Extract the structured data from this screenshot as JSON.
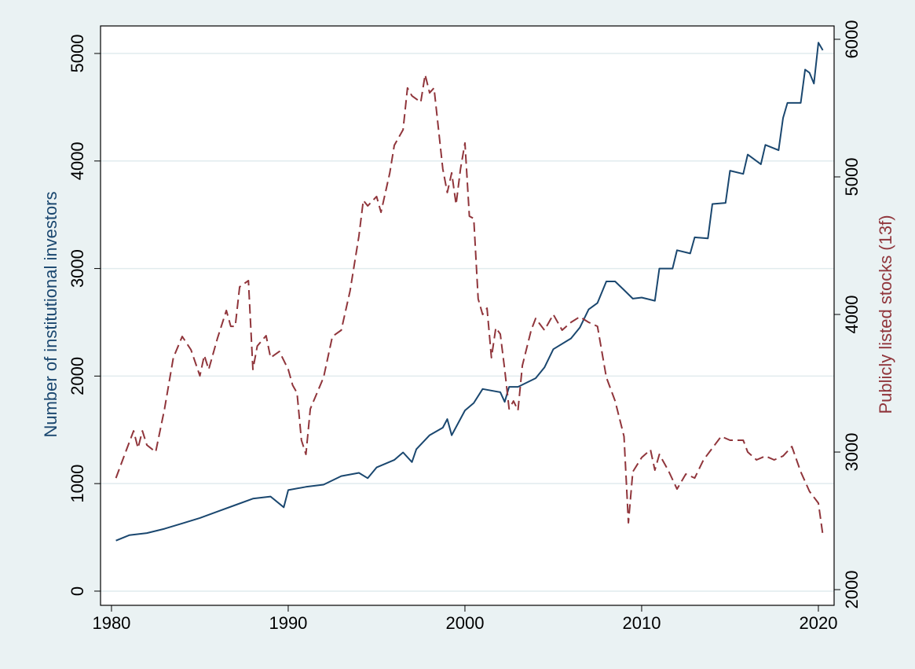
{
  "chart_data": {
    "type": "line",
    "y_label": "Number of institutional investors",
    "y2_label": "Publicly listed stocks (13f)",
    "xlim": [
      1979.38,
      2020.89
    ],
    "xticks": [
      1980,
      1990,
      2000,
      2010,
      2020
    ],
    "ylim": [
      -132,
      5256
    ],
    "yticks": [
      0,
      1000,
      2000,
      3000,
      4000,
      5000
    ],
    "y2lim": [
      1886,
      6097
    ],
    "y2ticks": [
      2000,
      3000,
      4000,
      5000,
      6000
    ],
    "grid": true,
    "series": [
      {
        "name": "Number of institutional investors",
        "color": "#1a476f",
        "dash": false,
        "axis": "y",
        "x": [
          1980.25,
          1981,
          1982,
          1983,
          1984,
          1985,
          1986,
          1987,
          1988,
          1989,
          1989.75,
          1990,
          1991,
          1992,
          1993,
          1994,
          1994.5,
          1995,
          1996,
          1996.5,
          1997,
          1997.25,
          1998,
          1998.75,
          1999,
          1999.25,
          2000,
          2000.5,
          2001,
          2002,
          2002.25,
          2002.5,
          2003,
          2004,
          2004.5,
          2005,
          2006,
          2006.5,
          2007,
          2007.5,
          2008,
          2008.5,
          2009,
          2009.5,
          2010,
          2010.75,
          2011,
          2011.75,
          2012,
          2012.75,
          2013,
          2013.75,
          2014,
          2014.75,
          2015,
          2015.75,
          2016,
          2016.75,
          2017,
          2017.75,
          2018,
          2018.25,
          2019,
          2019.25,
          2019.5,
          2019.75,
          2020,
          2020.25
        ],
        "values": [
          470,
          520,
          540,
          580,
          630,
          680,
          740,
          800,
          860,
          880,
          780,
          940,
          970,
          990,
          1070,
          1100,
          1050,
          1150,
          1220,
          1290,
          1200,
          1320,
          1450,
          1520,
          1600,
          1450,
          1680,
          1750,
          1880,
          1850,
          1760,
          1900,
          1900,
          1980,
          2080,
          2250,
          2350,
          2450,
          2620,
          2680,
          2880,
          2880,
          2800,
          2720,
          2730,
          2700,
          3000,
          3000,
          3170,
          3140,
          3290,
          3280,
          3600,
          3610,
          3910,
          3880,
          4060,
          3970,
          4150,
          4100,
          4400,
          4540,
          4540,
          4850,
          4820,
          4720,
          5100,
          5030
        ]
      },
      {
        "name": "Publicly listed stocks (13f)",
        "color": "#90353b",
        "dash": true,
        "axis": "y2",
        "x": [
          1980.25,
          1980.75,
          1981.25,
          1981.5,
          1981.75,
          1982,
          1982.5,
          1983,
          1983.5,
          1984,
          1984.5,
          1985,
          1985.25,
          1985.5,
          1986,
          1986.5,
          1986.75,
          1987,
          1987.25,
          1987.75,
          1988,
          1988.25,
          1988.75,
          1989,
          1989.5,
          1990,
          1990.25,
          1990.5,
          1990.75,
          1991,
          1991.25,
          1992,
          1992.5,
          1993,
          1993.5,
          1994,
          1994.25,
          1994.5,
          1995,
          1995.25,
          1995.75,
          1996,
          1996.5,
          1996.75,
          1997,
          1997.5,
          1997.75,
          1998,
          1998.25,
          1998.75,
          1999,
          1999.25,
          1999.5,
          1999.75,
          2000,
          2000.25,
          2000.5,
          2000.75,
          2001,
          2001.25,
          2001.5,
          2001.75,
          2002,
          2002.25,
          2002.5,
          2002.75,
          2003,
          2003.25,
          2003.75,
          2004,
          2004.5,
          2005,
          2005.5,
          2006,
          2006.5,
          2007,
          2007.5,
          2008,
          2008.5,
          2009,
          2009.25,
          2009.5,
          2010,
          2010.5,
          2010.75,
          2011,
          2011.5,
          2012,
          2012.5,
          2013,
          2013.5,
          2014,
          2014.5,
          2015,
          2015.75,
          2016,
          2016.5,
          2017,
          2017.5,
          2018,
          2018.5,
          2019,
          2019.5,
          2020,
          2020.25
        ],
        "values": [
          2811,
          2983,
          3154,
          3029,
          3154,
          3051,
          3000,
          3314,
          3686,
          3840,
          3743,
          3554,
          3703,
          3600,
          3829,
          4029,
          3914,
          3914,
          4200,
          4246,
          3600,
          3771,
          3846,
          3686,
          3731,
          3600,
          3486,
          3429,
          3086,
          2983,
          3314,
          3543,
          3840,
          3886,
          4171,
          4571,
          4829,
          4789,
          4857,
          4743,
          5029,
          5229,
          5343,
          5646,
          5589,
          5543,
          5743,
          5611,
          5646,
          5057,
          4886,
          5029,
          4800,
          5057,
          5246,
          4714,
          4697,
          4114,
          4000,
          4046,
          3686,
          3903,
          3857,
          3600,
          3314,
          3371,
          3303,
          3629,
          3886,
          3971,
          3886,
          4000,
          3886,
          3943,
          3983,
          3943,
          3914,
          3543,
          3371,
          3114,
          2486,
          2857,
          2960,
          3017,
          2869,
          2983,
          2869,
          2731,
          2840,
          2811,
          2943,
          3029,
          3114,
          3086,
          3086,
          3000,
          2943,
          2971,
          2943,
          2971,
          3040,
          2857,
          2714,
          2629,
          2400
        ]
      }
    ]
  }
}
